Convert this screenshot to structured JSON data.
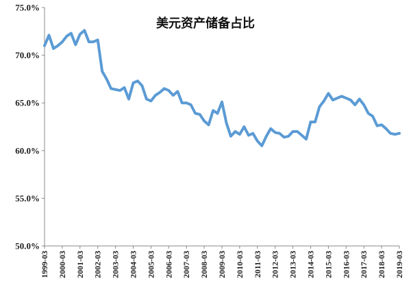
{
  "chart_data": {
    "type": "line",
    "title": "美元资产储备占比",
    "xlabel": "",
    "ylabel": "",
    "ylim": [
      50,
      75
    ],
    "y_ticks": [
      "50.0%",
      "55.0%",
      "60.0%",
      "65.0%",
      "70.0%",
      "75.0%"
    ],
    "x_ticks": [
      "1999-03",
      "2000-03",
      "2001-03",
      "2002-03",
      "2003-03",
      "2004-03",
      "2005-03",
      "2006-03",
      "2007-03",
      "2008-03",
      "2009-03",
      "2010-03",
      "2011-03",
      "2012-03",
      "2013-03",
      "2014-03",
      "2015-03",
      "2016-03",
      "2017-03",
      "2018-03",
      "2019-03"
    ],
    "grid": false,
    "legend": "none",
    "line_color": "#5b9bd5",
    "x_start": "1999-03",
    "series": [
      {
        "values": [
          71.0,
          72.1,
          70.7,
          71.0,
          71.4,
          72.0,
          72.3,
          71.1,
          72.2,
          72.6,
          71.4,
          71.4,
          71.6,
          68.3,
          67.5,
          66.5,
          66.4,
          66.3,
          66.6,
          65.4,
          67.1,
          67.3,
          66.8,
          65.4,
          65.2,
          65.8,
          66.1,
          66.5,
          66.3,
          65.8,
          66.2,
          65.0,
          65.0,
          64.8,
          63.9,
          63.8,
          63.1,
          62.7,
          64.2,
          63.9,
          65.1,
          62.9,
          61.5,
          62.0,
          61.7,
          62.5,
          61.6,
          61.8,
          61.0,
          60.5,
          61.5,
          62.3,
          61.9,
          61.8,
          61.4,
          61.5,
          62.0,
          62.0,
          61.6,
          61.2,
          63.0,
          63.0,
          64.6,
          65.2,
          66.0,
          65.3,
          65.5,
          65.7,
          65.5,
          65.3,
          64.8,
          65.4,
          64.8,
          63.9,
          63.6,
          62.6,
          62.7,
          62.3,
          61.8,
          61.7,
          61.8
        ]
      }
    ]
  }
}
